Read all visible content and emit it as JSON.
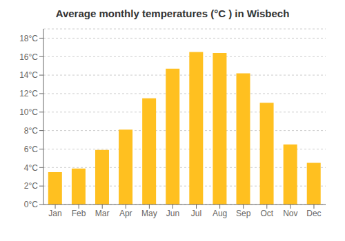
{
  "chart_data": {
    "type": "bar",
    "title": "Average monthly temperatures (°C ) in Wisbech",
    "categories": [
      "Jan",
      "Feb",
      "Mar",
      "Apr",
      "May",
      "Jun",
      "Jul",
      "Aug",
      "Sep",
      "Oct",
      "Nov",
      "Dec"
    ],
    "values": [
      3.5,
      3.9,
      5.9,
      8.1,
      11.5,
      14.7,
      16.5,
      16.4,
      14.2,
      11.0,
      6.5,
      4.5
    ],
    "color": "#FFC020",
    "ylim": [
      0,
      19
    ],
    "yticks": [
      {
        "value": 0,
        "label": "0°C"
      },
      {
        "value": 2,
        "label": "2°C"
      },
      {
        "value": 4,
        "label": "4°C"
      },
      {
        "value": 6,
        "label": "6°C"
      },
      {
        "value": 8,
        "label": "8°C"
      },
      {
        "value": 10,
        "label": "10°C"
      },
      {
        "value": 12,
        "label": "12°C"
      },
      {
        "value": 14,
        "label": "14°C"
      },
      {
        "value": 16,
        "label": "16°C"
      },
      {
        "value": 18,
        "label": "18°C"
      }
    ],
    "grid": true
  }
}
